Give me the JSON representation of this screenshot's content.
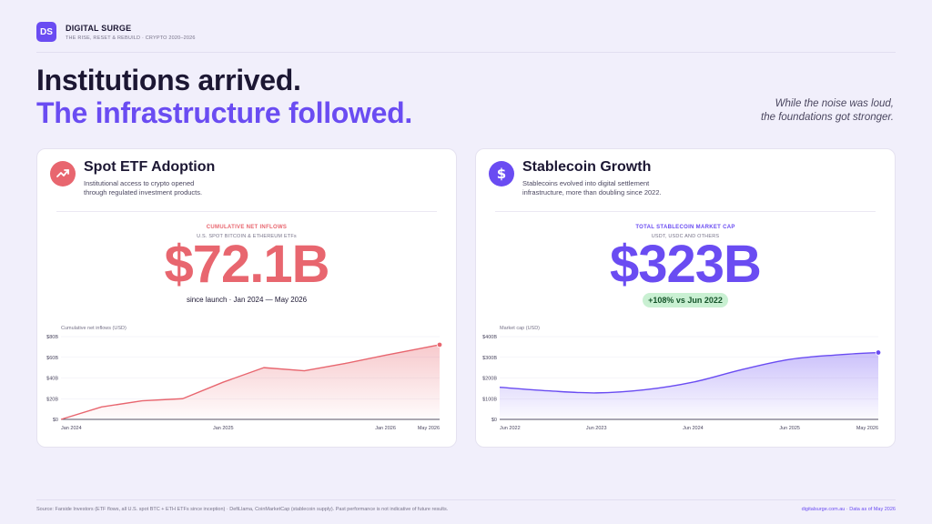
{
  "brand": {
    "logo": "DS",
    "name": "DIGITAL SURGE",
    "subtitle": "THE RISE, RESET & REBUILD · CRYPTO 2020–2026"
  },
  "headline": {
    "line1": "Institutions arrived.",
    "line2": "The infrastructure followed."
  },
  "tagline": {
    "line1": "While the noise was loud,",
    "line2": "the foundations got stronger."
  },
  "colors": {
    "accent": "#6a4cf2",
    "red": "#e8666f",
    "green_bg": "#c9f0d2",
    "text": "#1c1733",
    "background": "#f1effb"
  },
  "cards": {
    "etf": {
      "icon": "trending-up-icon",
      "title": "Spot ETF Adoption",
      "desc_line1": "Institutional access to crypto opened",
      "desc_line2": "through regulated investment products.",
      "kpi_label": "CUMULATIVE NET INFLOWS",
      "kpi_sub": "U.S. SPOT BITCOIN & ETHEREUM ETFs",
      "kpi_value": "$72.1B",
      "kpi_note": "since launch · Jan 2024 — May 2026"
    },
    "stable": {
      "icon": "dollar-icon",
      "title": "Stablecoin Growth",
      "desc_line1": "Stablecoins evolved into digital settlement",
      "desc_line2": "infrastructure, more than doubling since 2022.",
      "kpi_label": "TOTAL STABLECOIN MARKET CAP",
      "kpi_sub": "USDT, USDC AND OTHERS",
      "kpi_value": "$323B",
      "kpi_badge": "+108% vs Jun 2022"
    }
  },
  "chart_data": [
    {
      "type": "area",
      "ylabel": "Cumulative net inflows (USD)",
      "ylim": [
        0,
        80
      ],
      "yticks": [
        0,
        20,
        40,
        60,
        80
      ],
      "ytick_labels": [
        "$0",
        "$20B",
        "$40B",
        "$60B",
        "$80B"
      ],
      "x": [
        "Jan 2024",
        "Apr 2024",
        "Jul 2024",
        "Oct 2024",
        "Jan 2025",
        "Apr 2025",
        "Jul 2025",
        "Oct 2025",
        "Jan 2026",
        "May 2026"
      ],
      "x_index": [
        0,
        3,
        6,
        9,
        12,
        15,
        18,
        21,
        24,
        28
      ],
      "values": [
        0,
        12,
        18,
        20,
        36,
        50,
        47,
        54,
        62,
        72.1
      ],
      "xtick_labels": [
        "Jan 2024",
        "Jan 2025",
        "Jan 2026",
        "May 2026"
      ],
      "xtick_index": [
        0,
        12,
        24,
        28
      ],
      "color": "#e8666f",
      "grid": true
    },
    {
      "type": "area",
      "ylabel": "Market cap (USD)",
      "ylim": [
        0,
        400
      ],
      "yticks": [
        0,
        100,
        200,
        300,
        400
      ],
      "ytick_labels": [
        "$0",
        "$100B",
        "$200B",
        "$300B",
        "$400B"
      ],
      "x": [
        "Jun 2022",
        "Dec 2022",
        "Jun 2023",
        "Dec 2023",
        "Jun 2024",
        "Dec 2024",
        "Jun 2025",
        "Dec 2025",
        "May 2026"
      ],
      "x_index": [
        0,
        6,
        12,
        18,
        24,
        30,
        36,
        42,
        47
      ],
      "values": [
        155,
        138,
        128,
        143,
        180,
        240,
        290,
        312,
        323
      ],
      "xtick_labels": [
        "Jun 2022",
        "Jun 2023",
        "Jun 2024",
        "Jun 2025",
        "May 2026"
      ],
      "xtick_index": [
        0,
        12,
        24,
        36,
        47
      ],
      "color": "#6a4cf2",
      "grid": true
    }
  ],
  "footer": {
    "source": "Source: Farside Investors (ETF flows, all U.S. spot BTC + ETH ETFs since inception) · DefiLlama, CoinMarketCap (stablecoin supply). Past performance is not indicative of future results.",
    "right": "digitalsurge.com.au · Data as of May 2026"
  }
}
